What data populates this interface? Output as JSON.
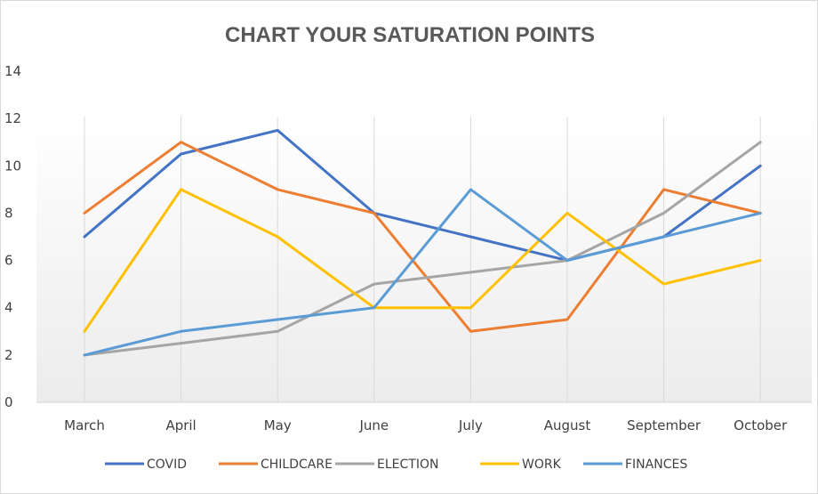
{
  "chart_data": {
    "type": "line",
    "title": "CHART YOUR SATURATION POINTS",
    "xlabel": "",
    "ylabel": "",
    "categories": [
      "March",
      "April",
      "May",
      "June",
      "July",
      "August",
      "September",
      "October"
    ],
    "ylim": [
      0,
      14
    ],
    "yticks": [
      0,
      2,
      4,
      6,
      8,
      10,
      12,
      14
    ],
    "grid": "vertical",
    "legend": "bottom",
    "series": [
      {
        "name": "COVID",
        "color": "#4472C4",
        "values": [
          7,
          10.5,
          11.5,
          8,
          7,
          6,
          7,
          10
        ]
      },
      {
        "name": "CHILDCARE",
        "color": "#ED7D31",
        "values": [
          8,
          11,
          9,
          8,
          3,
          3.5,
          9,
          8
        ]
      },
      {
        "name": "ELECTION",
        "color": "#A5A5A5",
        "values": [
          2,
          2.5,
          3,
          5,
          5.5,
          6,
          8,
          11
        ]
      },
      {
        "name": "WORK",
        "color": "#FFC000",
        "values": [
          3,
          9,
          7,
          4,
          4,
          8,
          5,
          6
        ]
      },
      {
        "name": "FINANCES",
        "color": "#5B9BD5",
        "values": [
          2,
          3,
          3.5,
          4,
          9,
          6,
          7,
          8
        ]
      }
    ]
  }
}
